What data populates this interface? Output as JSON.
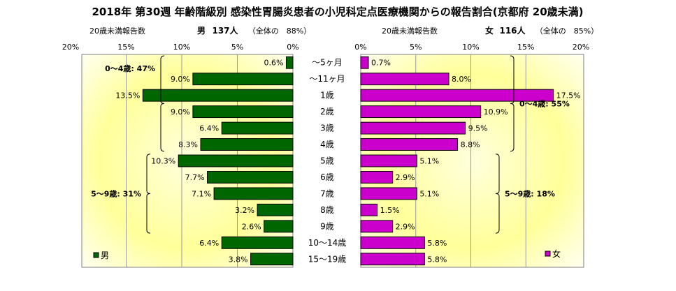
{
  "title": "2018年 第30週 年齢階級別 感染性胃腸炎患者の小児科定点医療機関からの報告割合(京都府 20歳未満)",
  "chart_data": [
    {
      "type": "bar",
      "orientation": "horizontal",
      "side": "male",
      "header": {
        "sublabel": "20歳未満報告数",
        "group": "男",
        "count": "137人",
        "share": "（全体の　88%）"
      },
      "ticks": [
        "20%",
        "15%",
        "10%",
        "5%",
        "0%"
      ],
      "xlim": [
        0,
        20
      ],
      "x_direction": "reversed",
      "categories": [
        "～5ヶ月",
        "～11ヶ月",
        "1歳",
        "2歳",
        "3歳",
        "4歳",
        "5歳",
        "6歳",
        "7歳",
        "8歳",
        "9歳",
        "10～14歳",
        "15～19歳"
      ],
      "values": [
        0.6,
        9.0,
        13.5,
        9.0,
        6.4,
        8.3,
        10.3,
        7.7,
        7.1,
        3.2,
        2.6,
        6.4,
        3.8
      ],
      "value_labels": [
        "0.6%",
        "9.0%",
        "13.5%",
        "9.0%",
        "6.4%",
        "8.3%",
        "10.3%",
        "7.7%",
        "7.1%",
        "3.2%",
        "2.6%",
        "6.4%",
        "3.8%"
      ],
      "bar_color": "#006600",
      "groups": [
        {
          "label": "0～4歳: 47%",
          "from": 0,
          "to": 5
        },
        {
          "label": "5～9歳: 31%",
          "from": 6,
          "to": 10
        }
      ],
      "legend": {
        "label": "男",
        "position": "bottom-left"
      },
      "grid": true
    },
    {
      "type": "bar",
      "orientation": "horizontal",
      "side": "female",
      "header": {
        "sublabel": "20歳未満報告数",
        "group": "女",
        "count": "116人",
        "share": "（全体の　85%）"
      },
      "ticks": [
        "0%",
        "5%",
        "10%",
        "15%",
        "20%"
      ],
      "xlim": [
        0,
        20
      ],
      "categories": [
        "～5ヶ月",
        "～11ヶ月",
        "1歳",
        "2歳",
        "3歳",
        "4歳",
        "5歳",
        "6歳",
        "7歳",
        "8歳",
        "9歳",
        "10～14歳",
        "15～19歳"
      ],
      "values": [
        0.7,
        8.0,
        17.5,
        10.9,
        9.5,
        8.8,
        5.1,
        2.9,
        5.1,
        1.5,
        2.9,
        5.8,
        5.8
      ],
      "value_labels": [
        "0.7%",
        "8.0%",
        "17.5%",
        "10.9%",
        "9.5%",
        "8.8%",
        "5.1%",
        "2.9%",
        "5.1%",
        "1.5%",
        "2.9%",
        "5.8%",
        "5.8%"
      ],
      "bar_color": "#cc00cc",
      "groups": [
        {
          "label": "0～4歳: 55%",
          "from": 0,
          "to": 5
        },
        {
          "label": "5～9歳: 18%",
          "from": 6,
          "to": 10
        }
      ],
      "legend": {
        "label": "女",
        "position": "bottom-right"
      },
      "grid": true
    }
  ]
}
